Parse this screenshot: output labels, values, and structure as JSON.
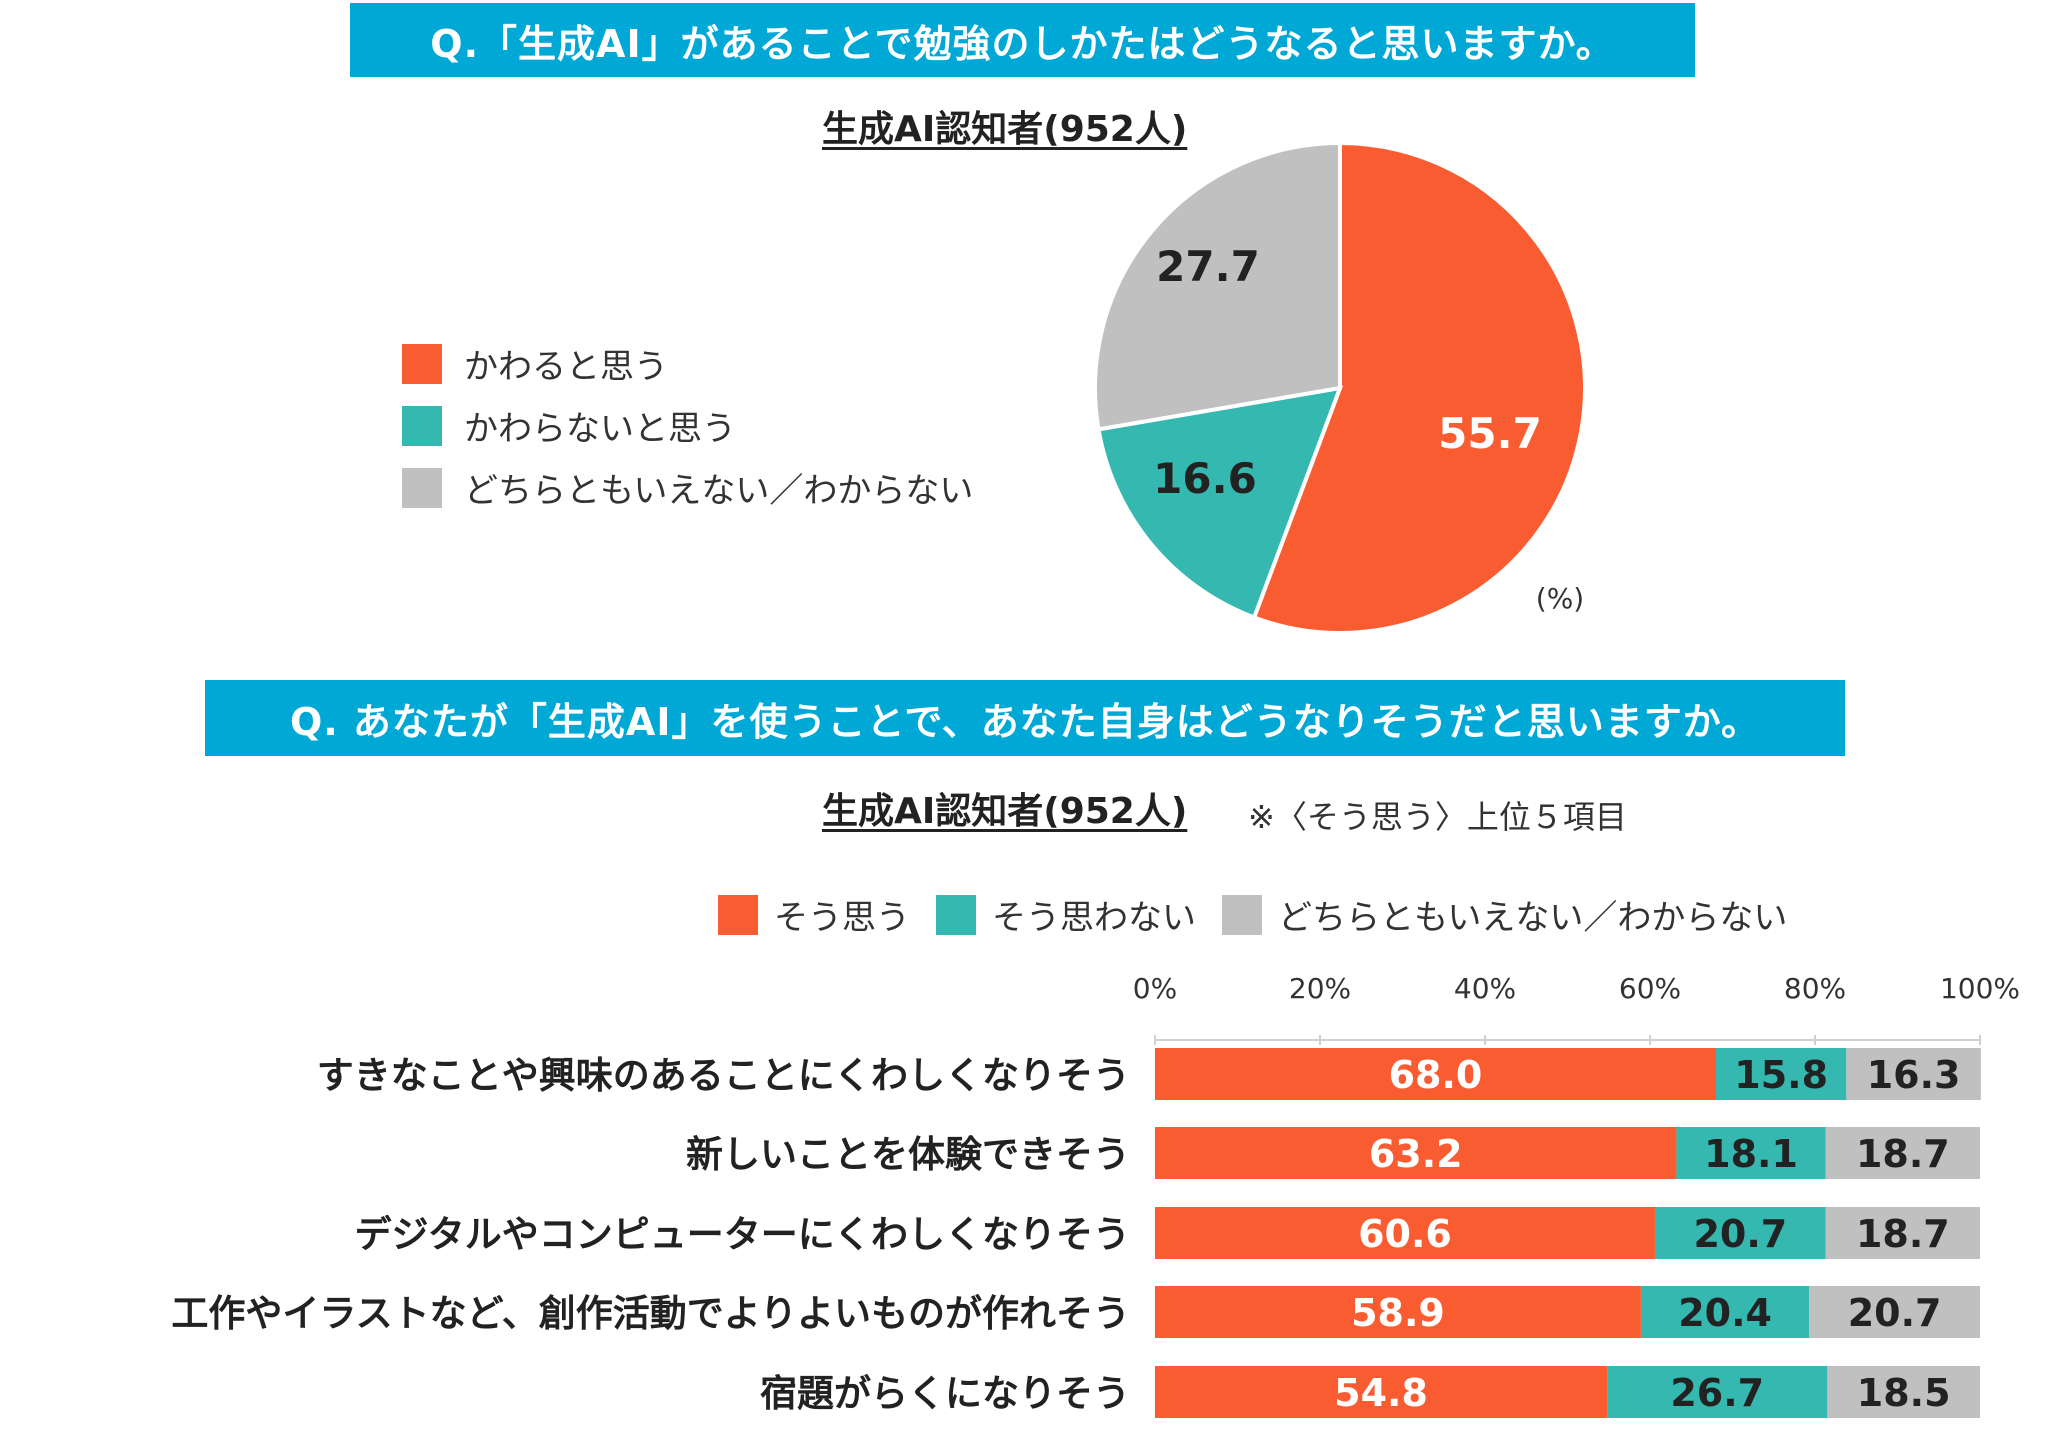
{
  "questions": {
    "q1": "Q.「生成AI」があることで勉強のしかたはどうなると思いますか。",
    "q2": "Q. あなたが「生成AI」を使うことで、あなた自身はどうなりそうだと思いますか。"
  },
  "colors": {
    "orange": "#fa5c31",
    "teal": "#35b8b0",
    "gray": "#c0c0c0"
  },
  "chart_data": [
    {
      "type": "pie",
      "subtitle": "生成AI認知者(952人)",
      "unit": "(%)",
      "legend_placement": "left",
      "slices": [
        {
          "label": "かわると思う",
          "value": 55.7,
          "color": "#fa5c31"
        },
        {
          "label": "かわらないと思う",
          "value": 16.6,
          "color": "#35b8b0"
        },
        {
          "label": "どちらともいえない／わからない",
          "value": 27.7,
          "color": "#c0c0c0"
        }
      ]
    },
    {
      "type": "bar",
      "orientation": "horizontal",
      "stacked": true,
      "subtitle": "生成AI認知者(952人)",
      "note": "※〈そう思う〉上位５項目",
      "legend_placement": "top",
      "xlim": [
        0,
        100
      ],
      "x_ticks": [
        "0%",
        "20%",
        "40%",
        "60%",
        "80%",
        "100%"
      ],
      "categories": [
        "すきなことや興味のあることにくわしくなりそう",
        "新しいことを体験できそう",
        "デジタルやコンピューターにくわしくなりそう",
        "工作やイラストなど、創作活動でよりよいものが作れそう",
        "宿題がらくになりそう"
      ],
      "series": [
        {
          "name": "そう思う",
          "color": "#fa5c31",
          "values": [
            68.0,
            63.2,
            60.6,
            58.9,
            54.8
          ],
          "labels": [
            "68.0",
            "63.2",
            "60.6",
            "58.9",
            "54.8"
          ]
        },
        {
          "name": "そう思わない",
          "color": "#35b8b0",
          "values": [
            15.8,
            18.1,
            20.7,
            20.4,
            26.7
          ],
          "labels": [
            "15.8",
            "18.1",
            "20.7",
            "20.4",
            "26.7"
          ]
        },
        {
          "name": "どちらともいえない／わからない",
          "color": "#c0c0c0",
          "values": [
            16.3,
            18.7,
            18.7,
            20.7,
            18.5
          ],
          "labels": [
            "16.3",
            "18.7",
            "18.7",
            "20.7",
            "18.5"
          ]
        }
      ]
    }
  ]
}
